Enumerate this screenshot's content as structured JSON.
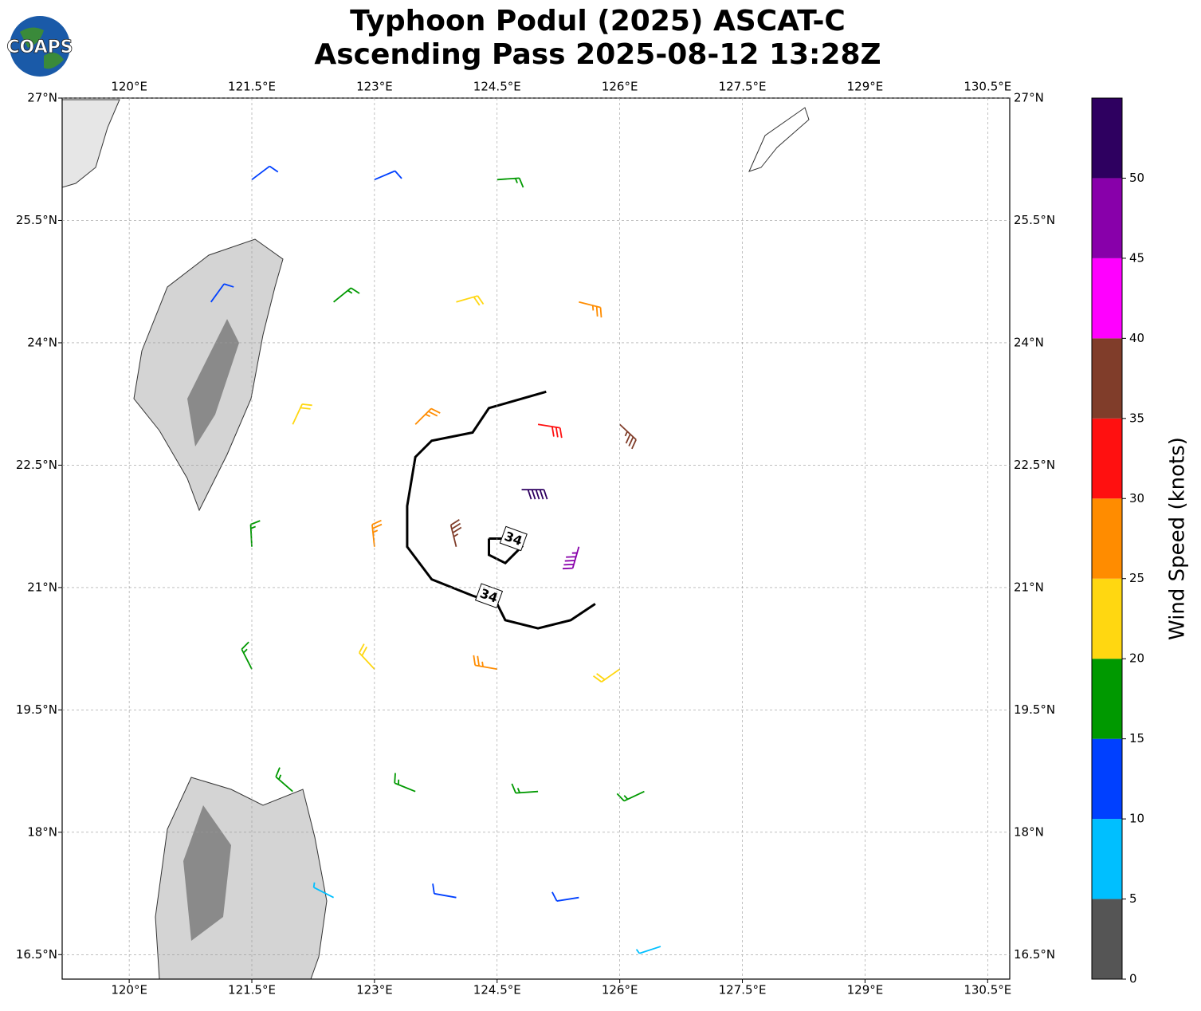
{
  "chart_data": {
    "type": "windbarb",
    "logo": "COAPS",
    "title": "Typhoon Podul (2025) ASCAT-C",
    "subtitle": "Ascending Pass 2025-08-12 13:28Z",
    "xlim": [
      119.18,
      130.77
    ],
    "ylim": [
      16.2,
      27
    ],
    "xticks": [
      {
        "value": 120,
        "label": "120°E"
      },
      {
        "value": 121.5,
        "label": "121.5°E"
      },
      {
        "value": 123,
        "label": "123°E"
      },
      {
        "value": 124.5,
        "label": "124.5°E"
      },
      {
        "value": 126,
        "label": "126°E"
      },
      {
        "value": 127.5,
        "label": "127.5°E"
      },
      {
        "value": 129,
        "label": "129°E"
      },
      {
        "value": 130.5,
        "label": "130.5°E"
      }
    ],
    "yticks": [
      {
        "value": 16.5,
        "label": "16.5°N"
      },
      {
        "value": 18,
        "label": "18°N"
      },
      {
        "value": 19.5,
        "label": "19.5°N"
      },
      {
        "value": 21,
        "label": "21°N"
      },
      {
        "value": 22.5,
        "label": "22.5°N"
      },
      {
        "value": 24,
        "label": "24°N"
      },
      {
        "value": 25.5,
        "label": "25.5°N"
      },
      {
        "value": 27,
        "label": "27°N"
      }
    ],
    "grid": true,
    "colorbar": {
      "label": "Wind Speed (knots)",
      "clim": [
        0,
        55
      ],
      "ticks": [
        0,
        5,
        10,
        15,
        20,
        25,
        30,
        35,
        40,
        45,
        50
      ],
      "colors": [
        "#555555",
        "#00bfff",
        "#0040ff",
        "#009900",
        "#ffd711",
        "#ff8c00",
        "#ff1010",
        "#803d2a",
        "#ff00ff",
        "#8800aa",
        "#2e0060"
      ]
    },
    "barbs": {
      "lon": [
        121.5,
        123.0,
        124.5,
        121.0,
        122.5,
        124.0,
        125.5,
        122.0,
        123.5,
        125.0,
        126.0,
        121.5,
        123.0,
        124.0,
        125.5,
        124.8,
        121.5,
        123.0,
        124.5,
        126.0,
        122.0,
        123.5,
        125.0,
        126.3,
        122.5,
        124.0,
        125.5,
        126.5
      ],
      "lat": [
        26.0,
        26.0,
        26.0,
        24.5,
        24.5,
        24.5,
        24.5,
        23.0,
        23.0,
        23.0,
        23.0,
        21.5,
        21.5,
        21.5,
        21.5,
        22.2,
        20.0,
        20.0,
        20.0,
        20.0,
        18.5,
        18.5,
        18.5,
        18.5,
        17.2,
        17.2,
        17.2,
        16.6
      ],
      "speed": [
        12,
        12,
        17,
        12,
        17,
        22,
        27,
        22,
        27,
        32,
        37,
        17,
        27,
        37,
        47,
        52,
        17,
        22,
        27,
        22,
        17,
        17,
        17,
        17,
        7,
        12,
        12,
        7
      ],
      "direction": [
        53,
        67,
        86,
        36,
        51,
        74,
        104,
        25,
        45,
        99,
        133,
        357,
        354,
        346,
        196,
        90,
        333,
        317,
        280,
        235,
        311,
        292,
        266,
        245,
        297,
        280,
        261,
        252
      ]
    },
    "contour": {
      "level": 34,
      "lon": [
        125.1,
        124.4,
        124.2,
        123.7,
        123.5,
        123.4,
        123.4,
        123.7,
        124.2,
        124.5,
        124.6,
        125.0,
        125.4,
        125.7
      ],
      "lat": [
        23.4,
        23.2,
        22.9,
        22.8,
        22.6,
        22.0,
        21.5,
        21.1,
        20.9,
        20.8,
        20.6,
        20.5,
        20.6,
        20.8
      ],
      "inner_lon": [
        124.4,
        124.4,
        124.6,
        124.8,
        124.6,
        124.4
      ],
      "inner_lat": [
        21.6,
        21.4,
        21.3,
        21.5,
        21.6,
        21.6
      ],
      "label_lon": [
        124.4,
        124.7
      ],
      "label_lat": [
        20.9,
        21.6
      ]
    }
  }
}
